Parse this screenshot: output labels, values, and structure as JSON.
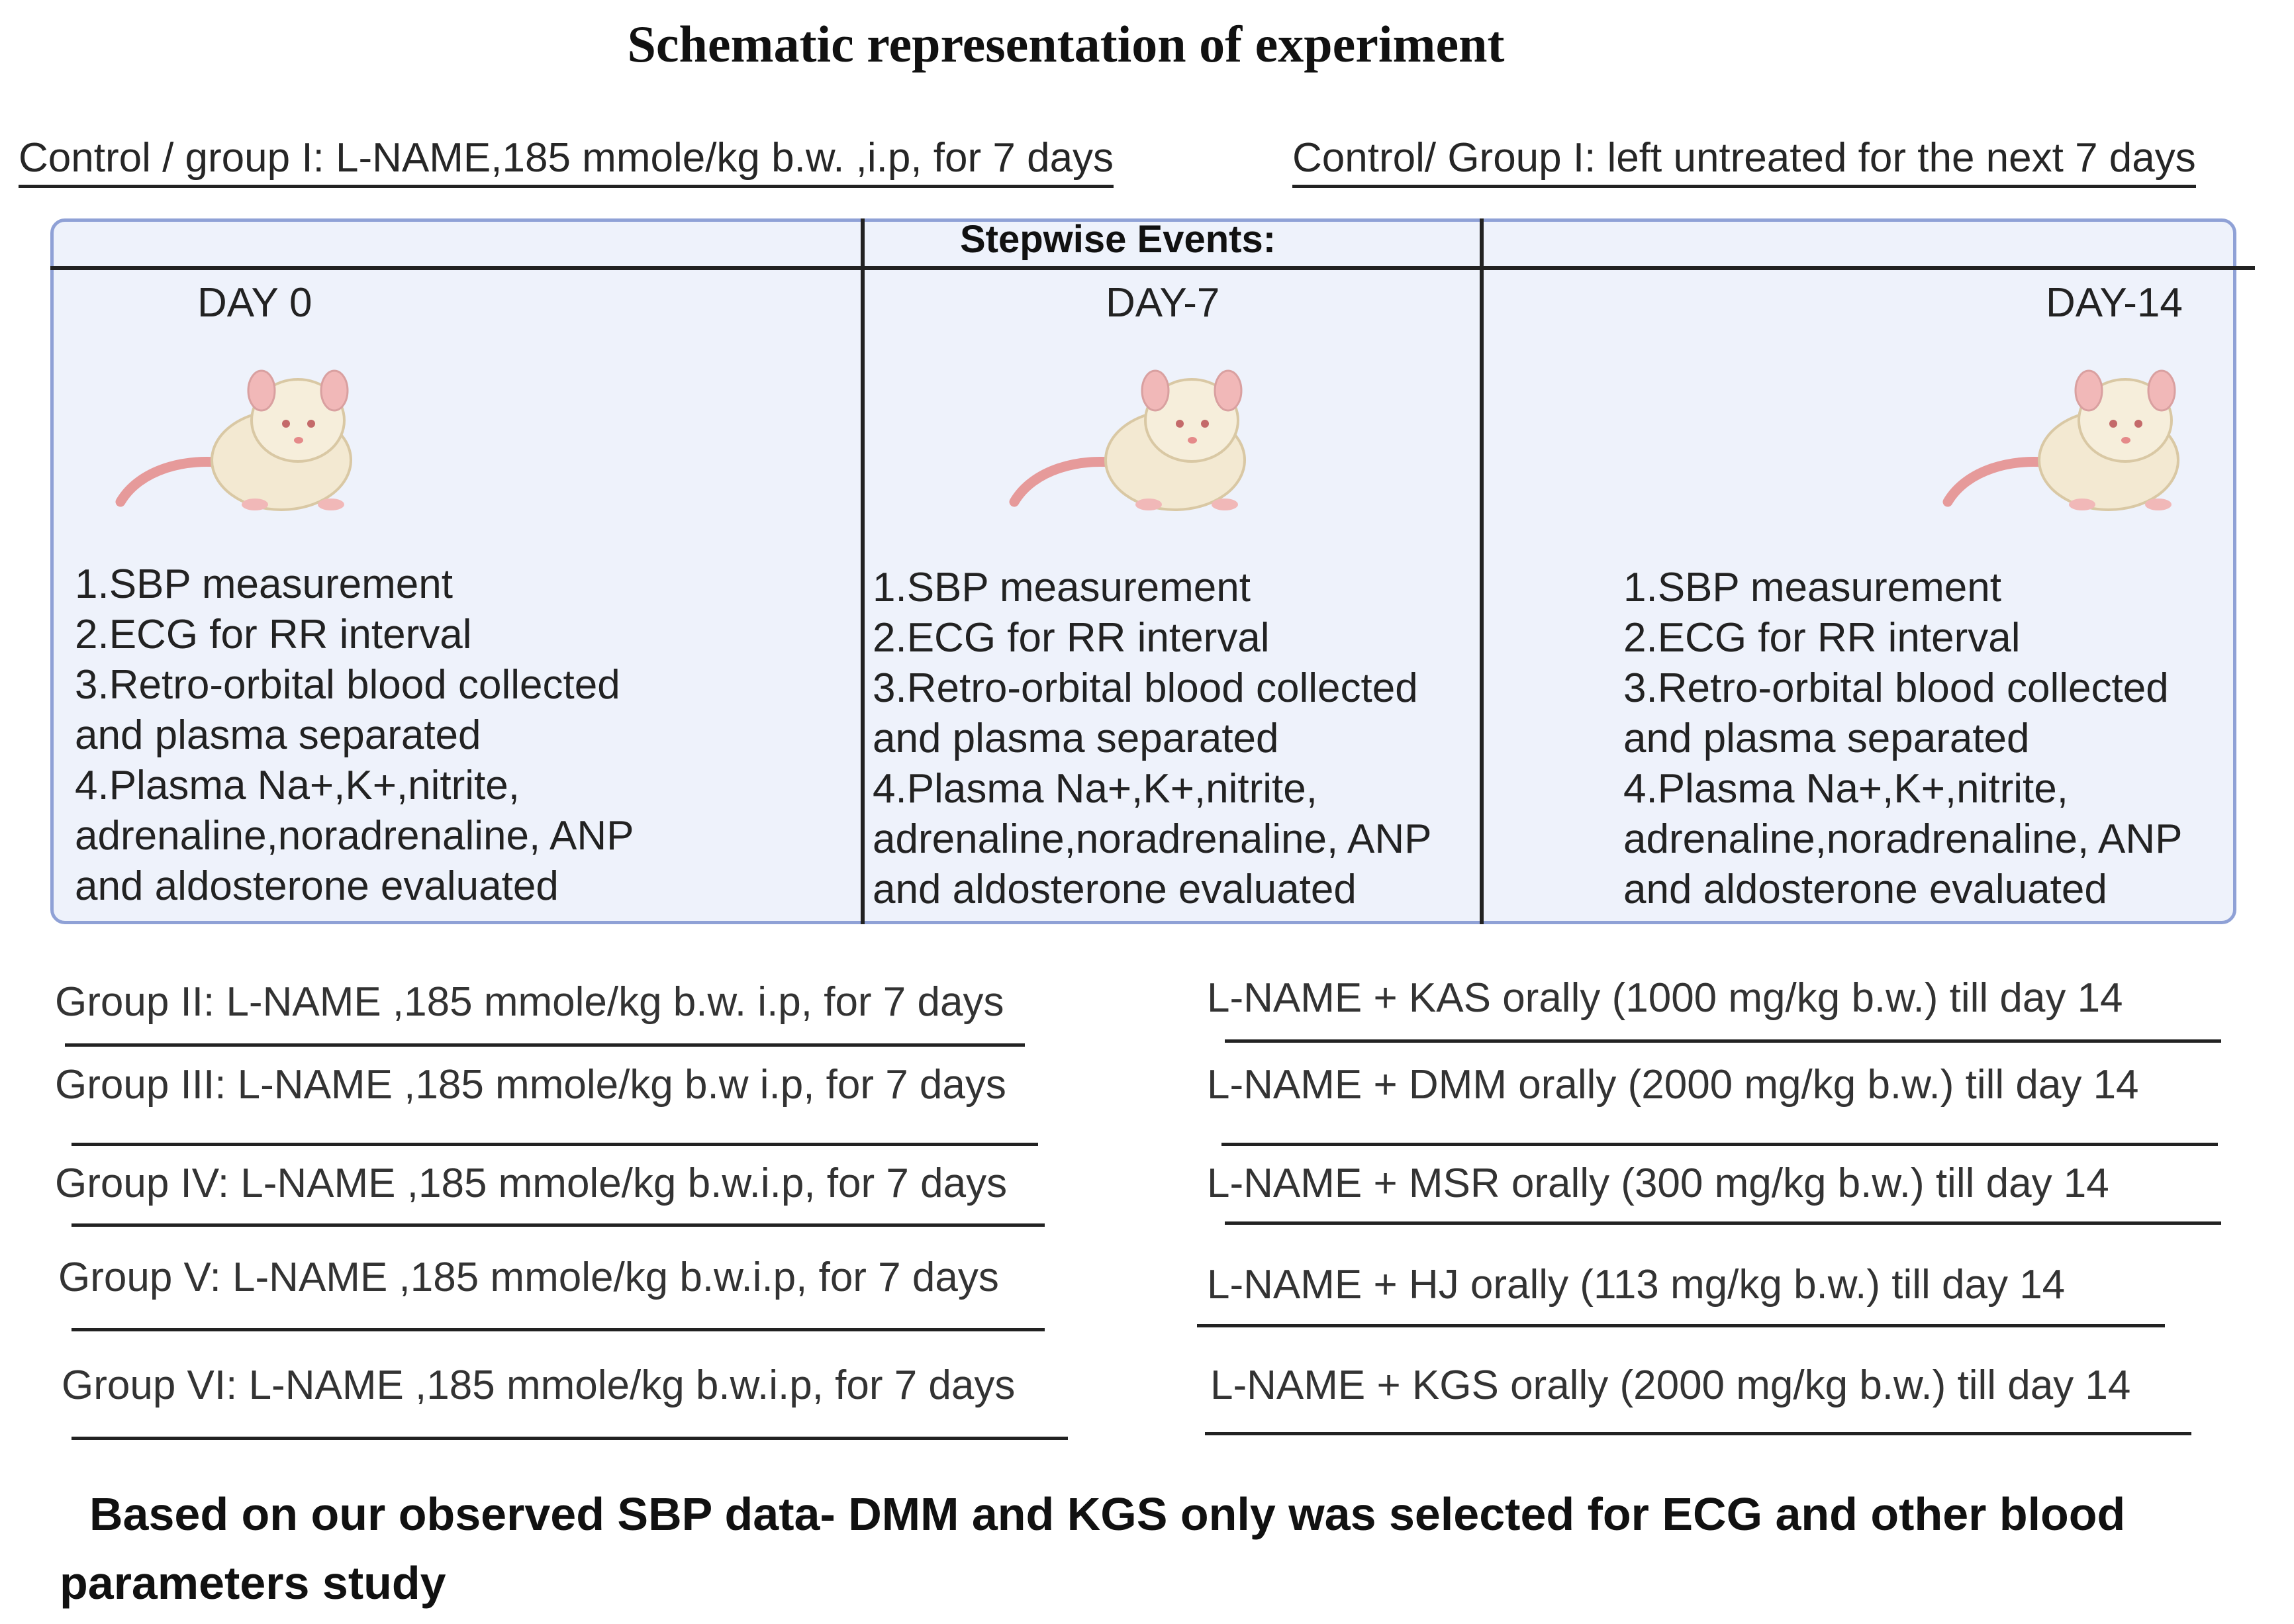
{
  "title": "Schematic representation of experiment",
  "control": {
    "left": "Control / group I: L-NAME,185 mmole/kg b.w. ,i.p, for 7 days",
    "right": "Control/ Group I: left untreated for the next 7 days"
  },
  "panel": {
    "header": "Stepwise Events:",
    "columns": [
      {
        "day": "DAY 0",
        "steps": [
          "1.SBP measurement",
          "2.ECG for RR interval",
          "3.Retro-orbital blood collected",
          "and plasma separated",
          "4.Plasma Na+,K+,nitrite,",
          "adrenaline,noradrenaline, ANP",
          "and aldosterone evaluated"
        ]
      },
      {
        "day": "DAY-7",
        "steps": [
          "1.SBP measurement",
          "2.ECG for RR interval",
          "3.Retro-orbital blood collected",
          "and plasma separated",
          "4.Plasma Na+,K+,nitrite,",
          "adrenaline,noradrenaline, ANP",
          "and aldosterone evaluated"
        ]
      },
      {
        "day": "DAY-14",
        "steps": [
          "1.SBP measurement",
          "2.ECG for RR interval",
          "3.Retro-orbital blood collected",
          "and plasma separated",
          "4.Plasma Na+,K+,nitrite,",
          "adrenaline,noradrenaline, ANP",
          "and aldosterone evaluated"
        ]
      }
    ]
  },
  "groups": [
    {
      "left": "Group II: L-NAME ,185 mmole/kg b.w. i.p, for 7 days",
      "right": "L-NAME + KAS orally (1000 mg/kg b.w.) till day 14"
    },
    {
      "left": "Group III: L-NAME ,185 mmole/kg b.w i.p, for 7 days",
      "right": "L-NAME + DMM orally (2000 mg/kg b.w.) till day 14"
    },
    {
      "left": "Group IV: L-NAME ,185 mmole/kg b.w.i.p, for 7 days",
      "right": "L-NAME + MSR orally (300 mg/kg b.w.) till day 14"
    },
    {
      "left": "Group V: L-NAME ,185 mmole/kg b.w.i.p, for 7 days",
      "right": "L-NAME + HJ orally (113 mg/kg b.w.) till day 14"
    },
    {
      "left": "Group VI: L-NAME ,185 mmole/kg b.w.i.p, for 7 days",
      "right": "L-NAME + KGS orally (2000 mg/kg b.w.) till day 14"
    }
  ],
  "footer": {
    "line1": "Based on our observed SBP data- DMM and KGS only was selected for ECG and other blood",
    "line2": "parameters study"
  }
}
